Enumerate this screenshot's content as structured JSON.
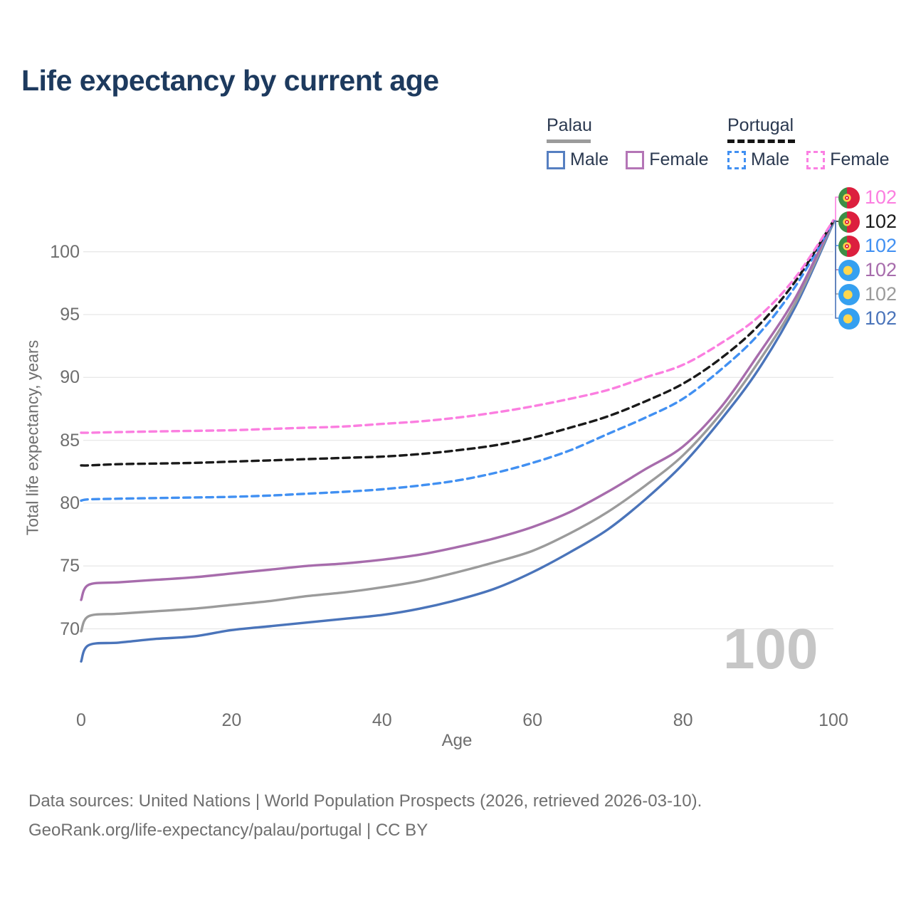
{
  "title": "Life expectancy by current age",
  "legend": {
    "palau": {
      "title": "Palau",
      "male_label": "Male",
      "female_label": "Female"
    },
    "portugal": {
      "title": "Portugal",
      "male_label": "Male",
      "female_label": "Female"
    }
  },
  "axes": {
    "y_title": "Total life expectancy, years",
    "x_title": "Age",
    "y_ticks": [
      70,
      75,
      80,
      85,
      90,
      95,
      100
    ],
    "x_ticks": [
      0,
      20,
      40,
      60,
      80,
      100
    ]
  },
  "colors": {
    "palau_male": "#4a74ba",
    "palau_total": "#9b9b9b",
    "palau_female": "#a76cac",
    "portugal_male": "#4190f2",
    "portugal_total": "#1a1a1a",
    "portugal_female": "#fb7ee0",
    "gridline": "#e8e8e8",
    "title_text": "#1d3a5e",
    "axis_text": "#6e6e6e",
    "watermark_text": "#c6c6c6",
    "palau_flag_blue": "#35a0f0",
    "palau_flag_yellow": "#ffd74e",
    "portugal_flag_green": "#3d8f46",
    "portugal_flag_red": "#dc1f3e",
    "portugal_flag_yellow": "#ffd24a"
  },
  "watermark": "100",
  "right_labels": [
    {
      "flag_icon": "portugal-flag-icon",
      "series": "portugal_female",
      "value": "102",
      "color": "#fb7ee0"
    },
    {
      "flag_icon": "portugal-flag-icon",
      "series": "portugal_total",
      "value": "102",
      "color": "#1a1a1a"
    },
    {
      "flag_icon": "portugal-flag-icon",
      "series": "portugal_male",
      "value": "102",
      "color": "#4190f2"
    },
    {
      "flag_icon": "palau-flag-icon",
      "series": "palau_female",
      "value": "102",
      "color": "#a76cac"
    },
    {
      "flag_icon": "palau-flag-icon",
      "series": "palau_total",
      "value": "102",
      "color": "#9b9b9b"
    },
    {
      "flag_icon": "palau-flag-icon",
      "series": "palau_male",
      "value": "102",
      "color": "#4a74ba"
    }
  ],
  "footer": {
    "line1": "Data sources: United Nations | World Population Prospects (2026, retrieved 2026-03-10).",
    "line2": "GeoRank.org/life-expectancy/palau/portugal | CC BY"
  },
  "chart_data": {
    "type": "line",
    "title": "Life expectancy by current age",
    "xlabel": "Age",
    "ylabel": "Total life expectancy, years",
    "xlim": [
      0,
      100
    ],
    "ylim": [
      65.5,
      103
    ],
    "grid": "horizontal",
    "legend_position": "top-right",
    "x": [
      0,
      1,
      5,
      10,
      15,
      20,
      25,
      30,
      35,
      40,
      45,
      50,
      55,
      60,
      65,
      70,
      75,
      80,
      85,
      90,
      95,
      100
    ],
    "series": [
      {
        "name": "Palau Male",
        "key": "palau_male",
        "color": "#4a74ba",
        "dash": "solid",
        "values": [
          67.4,
          68.7,
          68.9,
          69.2,
          69.4,
          69.9,
          70.2,
          70.5,
          70.8,
          71.1,
          71.6,
          72.3,
          73.2,
          74.5,
          76.1,
          77.9,
          80.3,
          83.1,
          86.6,
          90.6,
          95.7,
          102.3
        ]
      },
      {
        "name": "Palau Total",
        "key": "palau_total",
        "color": "#9b9b9b",
        "dash": "solid",
        "values": [
          69.8,
          71.0,
          71.2,
          71.4,
          71.6,
          71.9,
          72.2,
          72.6,
          72.9,
          73.3,
          73.8,
          74.5,
          75.3,
          76.2,
          77.6,
          79.3,
          81.4,
          83.8,
          87.1,
          91.2,
          96.0,
          102.4
        ]
      },
      {
        "name": "Palau Female",
        "key": "palau_female",
        "color": "#a76cac",
        "dash": "solid",
        "values": [
          72.3,
          73.5,
          73.7,
          73.9,
          74.1,
          74.4,
          74.7,
          75.0,
          75.2,
          75.5,
          75.9,
          76.5,
          77.2,
          78.1,
          79.3,
          80.9,
          82.7,
          84.5,
          87.6,
          91.8,
          96.4,
          102.5
        ]
      },
      {
        "name": "Portugal Male",
        "key": "portugal_male",
        "color": "#4190f2",
        "dash": "dashed",
        "values": [
          80.2,
          80.3,
          80.35,
          80.4,
          80.45,
          80.5,
          80.6,
          80.75,
          80.9,
          81.1,
          81.4,
          81.8,
          82.4,
          83.2,
          84.2,
          85.5,
          86.8,
          88.3,
          90.6,
          93.4,
          97.3,
          102.4
        ]
      },
      {
        "name": "Portugal Total",
        "key": "portugal_total",
        "color": "#1a1a1a",
        "dash": "dashed",
        "values": [
          83.0,
          83.0,
          83.1,
          83.15,
          83.2,
          83.3,
          83.4,
          83.5,
          83.6,
          83.7,
          83.9,
          84.2,
          84.6,
          85.2,
          86.0,
          86.9,
          88.1,
          89.5,
          91.5,
          94.1,
          97.7,
          102.45
        ]
      },
      {
        "name": "Portugal Female",
        "key": "portugal_female",
        "color": "#fb7ee0",
        "dash": "dashed",
        "values": [
          85.6,
          85.6,
          85.65,
          85.7,
          85.75,
          85.8,
          85.9,
          86.0,
          86.1,
          86.3,
          86.5,
          86.8,
          87.2,
          87.7,
          88.3,
          89.0,
          90.0,
          91.0,
          92.7,
          94.8,
          98.0,
          102.5
        ]
      }
    ]
  }
}
